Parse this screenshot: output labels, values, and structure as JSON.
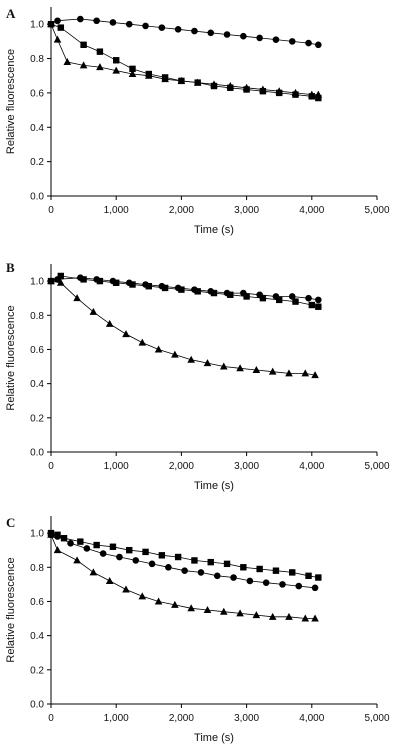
{
  "chart_data": [
    {
      "type": "line",
      "panel_label": "A",
      "xlabel": "Time (s)",
      "ylabel": "Relative fluorescence",
      "xlim": [
        0,
        5000
      ],
      "ylim": [
        0,
        1.1
      ],
      "x_ticks": [
        0,
        1000,
        2000,
        3000,
        4000,
        5000
      ],
      "x_tick_labels": [
        "0",
        "1,000",
        "2,000",
        "3,000",
        "4,000",
        "5,000"
      ],
      "y_ticks": [
        0,
        0.2,
        0.4,
        0.6,
        0.8,
        1.0
      ],
      "y_tick_labels": [
        "0.0",
        "0.2",
        "0.4",
        "0.6",
        "0.8",
        "1.0"
      ],
      "grid": false,
      "legend": "none",
      "series": [
        {
          "marker": "circle",
          "x": [
            0,
            100,
            450,
            700,
            950,
            1200,
            1450,
            1700,
            1950,
            2200,
            2450,
            2700,
            2950,
            3200,
            3450,
            3700,
            3950,
            4100
          ],
          "y": [
            1.0,
            1.02,
            1.03,
            1.02,
            1.01,
            1.0,
            0.99,
            0.98,
            0.97,
            0.96,
            0.95,
            0.94,
            0.93,
            0.92,
            0.91,
            0.9,
            0.89,
            0.88
          ]
        },
        {
          "marker": "square",
          "x": [
            0,
            150,
            500,
            750,
            1000,
            1250,
            1500,
            1750,
            2000,
            2250,
            2500,
            2750,
            3000,
            3250,
            3500,
            3750,
            4000,
            4100
          ],
          "y": [
            1.0,
            0.98,
            0.88,
            0.84,
            0.79,
            0.74,
            0.71,
            0.69,
            0.67,
            0.66,
            0.64,
            0.63,
            0.62,
            0.61,
            0.6,
            0.59,
            0.58,
            0.57
          ]
        },
        {
          "marker": "triangle",
          "x": [
            0,
            100,
            250,
            500,
            750,
            1000,
            1250,
            1500,
            1750,
            2000,
            2250,
            2500,
            2750,
            3000,
            3250,
            3500,
            3750,
            4000,
            4100
          ],
          "y": [
            1.0,
            0.91,
            0.78,
            0.76,
            0.75,
            0.73,
            0.71,
            0.7,
            0.68,
            0.67,
            0.66,
            0.65,
            0.64,
            0.63,
            0.62,
            0.61,
            0.6,
            0.59,
            0.59
          ]
        }
      ]
    },
    {
      "type": "line",
      "panel_label": "B",
      "xlabel": "Time (s)",
      "ylabel": "Relative fluorescence",
      "xlim": [
        0,
        5000
      ],
      "ylim": [
        0,
        1.1
      ],
      "x_ticks": [
        0,
        1000,
        2000,
        3000,
        4000,
        5000
      ],
      "x_tick_labels": [
        "0",
        "1,000",
        "2,000",
        "3,000",
        "4,000",
        "5,000"
      ],
      "y_ticks": [
        0,
        0.2,
        0.4,
        0.6,
        0.8,
        1.0
      ],
      "y_tick_labels": [
        "0.0",
        "0.2",
        "0.4",
        "0.6",
        "0.8",
        "1.0"
      ],
      "grid": false,
      "legend": "none",
      "series": [
        {
          "marker": "circle",
          "x": [
            0,
            100,
            450,
            700,
            950,
            1200,
            1450,
            1700,
            1950,
            2200,
            2450,
            2700,
            2950,
            3200,
            3450,
            3700,
            3950,
            4100
          ],
          "y": [
            1.0,
            1.01,
            1.02,
            1.01,
            1.0,
            0.99,
            0.98,
            0.97,
            0.96,
            0.95,
            0.94,
            0.93,
            0.93,
            0.92,
            0.91,
            0.91,
            0.9,
            0.89
          ]
        },
        {
          "marker": "square",
          "x": [
            0,
            150,
            500,
            750,
            1000,
            1250,
            1500,
            1750,
            2000,
            2250,
            2500,
            2750,
            3000,
            3250,
            3500,
            3750,
            4000,
            4100
          ],
          "y": [
            1.0,
            1.03,
            1.01,
            1.0,
            0.99,
            0.98,
            0.97,
            0.96,
            0.95,
            0.94,
            0.93,
            0.92,
            0.91,
            0.9,
            0.89,
            0.88,
            0.86,
            0.85
          ]
        },
        {
          "marker": "triangle",
          "x": [
            0,
            150,
            400,
            650,
            900,
            1150,
            1400,
            1650,
            1900,
            2150,
            2400,
            2650,
            2900,
            3150,
            3400,
            3650,
            3900,
            4050
          ],
          "y": [
            1.0,
            0.99,
            0.9,
            0.82,
            0.75,
            0.69,
            0.64,
            0.6,
            0.57,
            0.54,
            0.52,
            0.5,
            0.49,
            0.48,
            0.47,
            0.46,
            0.46,
            0.45
          ]
        }
      ]
    },
    {
      "type": "line",
      "panel_label": "C",
      "xlabel": "Time (s)",
      "ylabel": "Relative fluorescence",
      "xlim": [
        0,
        5000
      ],
      "ylim": [
        0,
        1.1
      ],
      "x_ticks": [
        0,
        1000,
        2000,
        3000,
        4000,
        5000
      ],
      "x_tick_labels": [
        "0",
        "1,000",
        "2,000",
        "3,000",
        "4,000",
        "5,000"
      ],
      "y_ticks": [
        0,
        0.2,
        0.4,
        0.6,
        0.8,
        1.0
      ],
      "y_tick_labels": [
        "0.0",
        "0.2",
        "0.4",
        "0.6",
        "0.8",
        "1.0"
      ],
      "grid": false,
      "legend": "none",
      "series": [
        {
          "marker": "square",
          "x": [
            0,
            100,
            200,
            450,
            700,
            950,
            1200,
            1450,
            1700,
            1950,
            2200,
            2450,
            2700,
            2950,
            3200,
            3450,
            3700,
            3950,
            4100
          ],
          "y": [
            1.0,
            0.99,
            0.97,
            0.95,
            0.93,
            0.92,
            0.9,
            0.89,
            0.87,
            0.86,
            0.84,
            0.83,
            0.82,
            0.8,
            0.79,
            0.78,
            0.77,
            0.75,
            0.74
          ]
        },
        {
          "marker": "circle",
          "x": [
            0,
            100,
            300,
            550,
            800,
            1050,
            1300,
            1550,
            1800,
            2050,
            2300,
            2550,
            2800,
            3050,
            3300,
            3550,
            3800,
            4050
          ],
          "y": [
            0.99,
            0.98,
            0.94,
            0.91,
            0.88,
            0.86,
            0.84,
            0.82,
            0.8,
            0.78,
            0.77,
            0.75,
            0.74,
            0.72,
            0.71,
            0.7,
            0.69,
            0.68
          ]
        },
        {
          "marker": "triangle",
          "x": [
            0,
            100,
            400,
            650,
            900,
            1150,
            1400,
            1650,
            1900,
            2150,
            2400,
            2650,
            2900,
            3150,
            3400,
            3650,
            3900,
            4050
          ],
          "y": [
            0.99,
            0.9,
            0.84,
            0.77,
            0.72,
            0.67,
            0.63,
            0.6,
            0.58,
            0.56,
            0.55,
            0.54,
            0.53,
            0.52,
            0.51,
            0.51,
            0.5,
            0.5
          ]
        }
      ]
    }
  ]
}
